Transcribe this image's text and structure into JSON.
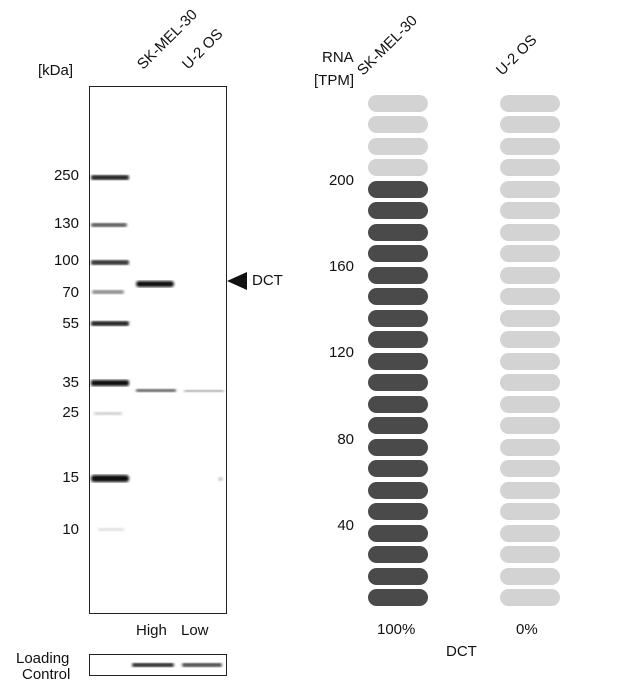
{
  "western_blot": {
    "unit_label": "[kDa]",
    "lanes": [
      "SK-MEL-30",
      "U-2 OS"
    ],
    "markers": [
      "250",
      "130",
      "100",
      "70",
      "55",
      "35",
      "25",
      "15",
      "10"
    ],
    "band_label": "DCT",
    "expression_labels": [
      "High",
      "Low"
    ],
    "loading_control": [
      "Loading",
      "Control"
    ]
  },
  "rna_panel": {
    "axis_title": [
      "RNA",
      "[TPM]"
    ],
    "columns": [
      "SK-MEL-30",
      "U-2 OS"
    ],
    "ticks": [
      "200",
      "160",
      "120",
      "80",
      "40"
    ],
    "percentages": [
      "100%",
      "0%"
    ],
    "gene": "DCT",
    "colors": {
      "filled": "#4a4a4a",
      "empty": "#d3d3d3"
    }
  },
  "chart_data": {
    "type": "bar",
    "categories": [
      "SK-MEL-30",
      "U-2 OS"
    ],
    "series": [
      {
        "values": [
          100,
          0
        ]
      }
    ],
    "ylabel": "RNA [TPM]",
    "yticks": [
      40,
      80,
      120,
      160,
      200
    ],
    "segments_per_column": 24,
    "filled_segments": [
      20,
      0
    ]
  }
}
